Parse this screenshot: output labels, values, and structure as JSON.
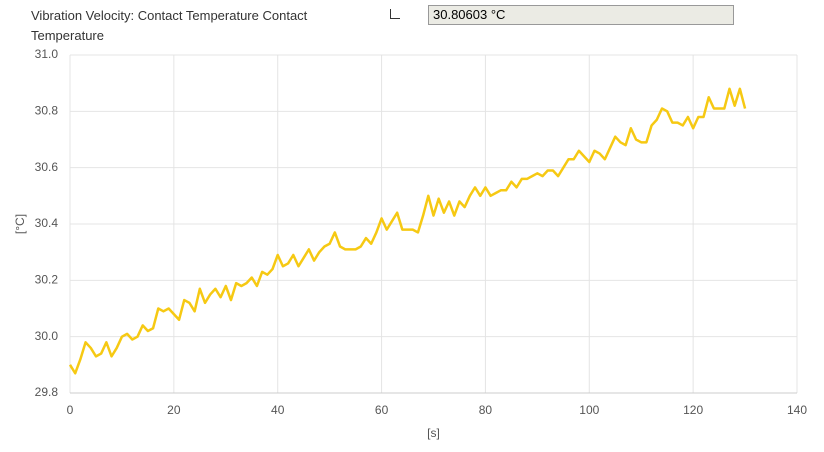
{
  "header": {
    "title": "Vibration Velocity: Contact Temperature Contact Temperature",
    "value": "30.80603 °C"
  },
  "chart_data": {
    "type": "line",
    "xlabel": "[s]",
    "ylabel": "[°C]",
    "xlim": [
      0,
      140
    ],
    "xticks": [
      0,
      20,
      40,
      60,
      80,
      100,
      120,
      140
    ],
    "ylim": [
      29.8,
      31.0
    ],
    "yticks": [
      29.8,
      {
        "value": 30.0,
        "label": "30.0"
      },
      30.2,
      30.4,
      30.6,
      30.8,
      {
        "value": 31.0,
        "label": "31.0"
      }
    ],
    "grid": true,
    "x": [
      0,
      1,
      2,
      3,
      4,
      5,
      6,
      7,
      8,
      9,
      10,
      11,
      12,
      13,
      14,
      15,
      16,
      17,
      18,
      19,
      20,
      21,
      22,
      23,
      24,
      25,
      26,
      27,
      28,
      29,
      30,
      31,
      32,
      33,
      34,
      35,
      36,
      37,
      38,
      39,
      40,
      41,
      42,
      43,
      44,
      45,
      46,
      47,
      48,
      49,
      50,
      51,
      52,
      53,
      54,
      55,
      56,
      57,
      58,
      59,
      60,
      61,
      62,
      63,
      64,
      65,
      66,
      67,
      68,
      69,
      70,
      71,
      72,
      73,
      74,
      75,
      76,
      77,
      78,
      79,
      80,
      81,
      82,
      83,
      84,
      85,
      86,
      87,
      88,
      89,
      90,
      91,
      92,
      93,
      94,
      95,
      96,
      97,
      98,
      99,
      100,
      101,
      102,
      103,
      104,
      105,
      106,
      107,
      108,
      109,
      110,
      111,
      112,
      113,
      114,
      115,
      116,
      117,
      118,
      119,
      120,
      121,
      122,
      123,
      124,
      125,
      126,
      127,
      128,
      129,
      130
    ],
    "series": [
      {
        "color": "#f6c913",
        "values": [
          29.9,
          29.87,
          29.92,
          29.98,
          29.96,
          29.93,
          29.94,
          29.98,
          29.93,
          29.96,
          30.0,
          30.01,
          29.99,
          30.0,
          30.04,
          30.02,
          30.03,
          30.1,
          30.09,
          30.1,
          30.08,
          30.06,
          30.13,
          30.12,
          30.09,
          30.17,
          30.12,
          30.15,
          30.17,
          30.14,
          30.18,
          30.13,
          30.19,
          30.18,
          30.19,
          30.21,
          30.18,
          30.23,
          30.22,
          30.24,
          30.29,
          30.25,
          30.26,
          30.29,
          30.25,
          30.28,
          30.31,
          30.27,
          30.3,
          30.32,
          30.33,
          30.37,
          30.32,
          30.31,
          30.31,
          30.31,
          30.32,
          30.35,
          30.33,
          30.37,
          30.42,
          30.38,
          30.41,
          30.44,
          30.38,
          30.38,
          30.38,
          30.37,
          30.43,
          30.5,
          30.43,
          30.49,
          30.44,
          30.48,
          30.43,
          30.48,
          30.46,
          30.5,
          30.53,
          30.5,
          30.53,
          30.5,
          30.51,
          30.52,
          30.52,
          30.55,
          30.53,
          30.56,
          30.56,
          30.57,
          30.58,
          30.57,
          30.59,
          30.59,
          30.57,
          30.6,
          30.63,
          30.63,
          30.66,
          30.64,
          30.62,
          30.66,
          30.65,
          30.63,
          30.67,
          30.71,
          30.69,
          30.68,
          30.74,
          30.7,
          30.69,
          30.69,
          30.75,
          30.77,
          30.81,
          30.8,
          30.76,
          30.76,
          30.75,
          30.78,
          30.74,
          30.78,
          30.78,
          30.85,
          30.81,
          30.81,
          30.81,
          30.88,
          30.82,
          30.88,
          30.81
        ]
      }
    ]
  }
}
